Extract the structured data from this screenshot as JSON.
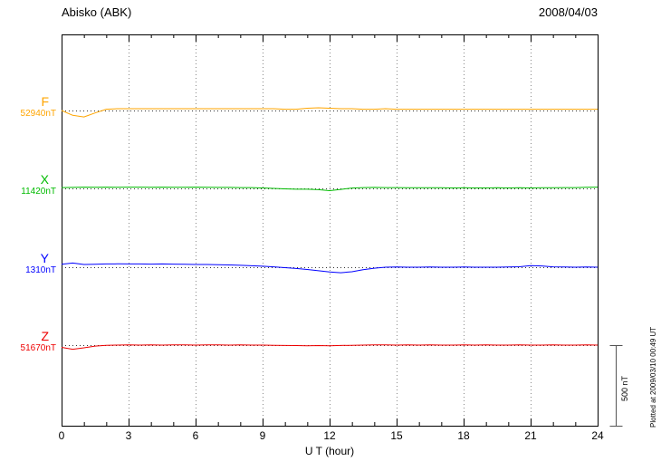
{
  "chart_data": {
    "type": "line",
    "title": "Abisko (ABK)",
    "date": "2008/04/03",
    "xlabel": "U T (hour)",
    "xlim": [
      0,
      24
    ],
    "x_ticks": [
      0,
      3,
      6,
      9,
      12,
      15,
      18,
      21,
      24
    ],
    "x_step_hours": 0.5,
    "values_unit": "nT deviation from dotted baseline",
    "scale_bar_nT": 500,
    "scale_bar_label": "500 nT",
    "plotted_at": "Plotted at 2009/03/10 00:49 UT",
    "grid": "dotted vertical gridlines every 3 hours; dotted horizontal baseline per trace",
    "series": [
      {
        "name": "F",
        "baseline_label": "52940nT",
        "baseline_nT": 52940,
        "color": "#FFA500",
        "values": [
          0,
          -30,
          -40,
          -15,
          8,
          11,
          11,
          11,
          11,
          11,
          11,
          11,
          11,
          11,
          11,
          11,
          11,
          11,
          11,
          11,
          8,
          8,
          14,
          17,
          14,
          11,
          11,
          8,
          8,
          11,
          8,
          8,
          8,
          8,
          8,
          8,
          8,
          8,
          8,
          8,
          8,
          8,
          8,
          8,
          8,
          8,
          8,
          8,
          8
        ]
      },
      {
        "name": "X",
        "baseline_label": "11420nT",
        "baseline_nT": 11420,
        "color": "#00BB00",
        "values": [
          5,
          6,
          8,
          7,
          8,
          7,
          8,
          8,
          7,
          8,
          7,
          7,
          8,
          7,
          6,
          6,
          5,
          5,
          3,
          0,
          -3,
          -5,
          -5,
          -8,
          -14,
          -6,
          2,
          5,
          6,
          5,
          5,
          4,
          4,
          4,
          4,
          3,
          4,
          3,
          3,
          4,
          3,
          4,
          3,
          4,
          4,
          5,
          5,
          7,
          8
        ]
      },
      {
        "name": "Y",
        "baseline_label": "1310nT",
        "baseline_nT": 1310,
        "color": "#0000FF",
        "values": [
          18,
          26,
          17,
          18,
          20,
          21,
          20,
          20,
          19,
          20,
          19,
          18,
          17,
          17,
          15,
          14,
          12,
          9,
          6,
          2,
          -3,
          -8,
          -14,
          -22,
          -30,
          -34,
          -28,
          -16,
          -6,
          0,
          1,
          0,
          0,
          1,
          0,
          0,
          1,
          0,
          0,
          0,
          1,
          3,
          10,
          8,
          2,
          1,
          0,
          1,
          0
        ]
      },
      {
        "name": "Z",
        "baseline_label": "51670nT",
        "baseline_nT": 51670,
        "color": "#EE0000",
        "values": [
          -14,
          -26,
          -17,
          -6,
          -1,
          0,
          1,
          0,
          1,
          0,
          1,
          1,
          0,
          1,
          1,
          0,
          1,
          0,
          0,
          -1,
          -2,
          -3,
          -4,
          -3,
          -4,
          -2,
          -1,
          0,
          1,
          1,
          0,
          1,
          0,
          1,
          0,
          0,
          1,
          0,
          1,
          0,
          0,
          1,
          0,
          0,
          1,
          0,
          0,
          1,
          0
        ]
      }
    ]
  }
}
